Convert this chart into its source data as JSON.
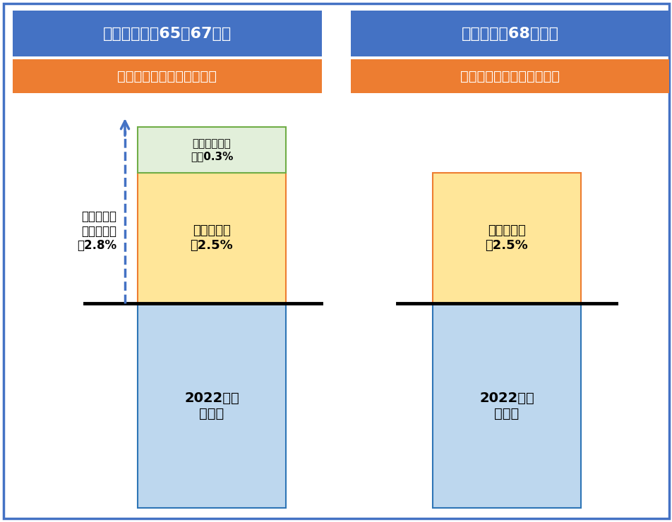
{
  "bg_color": "#ffffff",
  "outer_border_color": "#4472c4",
  "left_header_text": "新規裁定者（65〜67歳）",
  "right_header_text": "既裁定者（68歳〜）",
  "left_subheader_text": "マクロ経済スライド調整前",
  "right_subheader_text": "マクロ経済スライド調整前",
  "header_bg_color": "#4472c4",
  "header_text_color": "#ffffff",
  "subheader_bg_color": "#ed7d31",
  "subheader_text_color": "#ffffff",
  "base_bar_color": "#bdd7ee",
  "base_bar_border_color": "#2e75b6",
  "base_bar_label": "2022年度\n年金額",
  "orange_bar_color": "#ffe699",
  "orange_bar_border_color": "#ed7d31",
  "orange_bar_label_left": "物価変動率\n＋2.5%",
  "orange_bar_label_right": "物価変動率\n＋2.5%",
  "green_bar_color": "#e2efda",
  "green_bar_border_color": "#70ad47",
  "green_bar_label": "実質賃金変動\n率＋0.3%",
  "left_annotation": "名目手取り\n賃金変動率\n＋2.8%",
  "arrow_color": "#4472c4",
  "baseline_color": "#000000",
  "text_color": "#000000"
}
